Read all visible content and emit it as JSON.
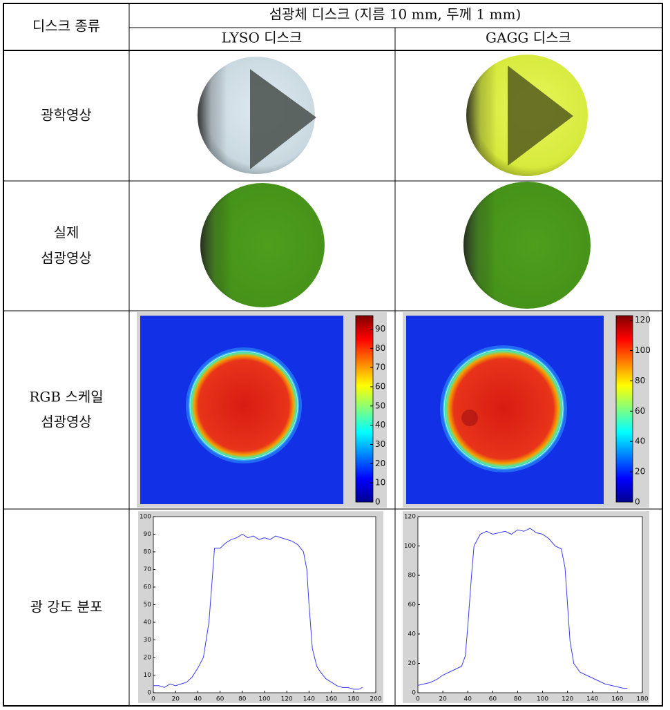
{
  "table": {
    "header": {
      "row_label": "디스크 종류",
      "group": "섬광체 디스크 (지름 10 mm, 두께 1 mm)",
      "columns": [
        "LYSO 디스크",
        "GAGG 디스크"
      ]
    },
    "rows": [
      {
        "label": [
          "광학영상"
        ]
      },
      {
        "label": [
          "실제",
          "섬광영상"
        ]
      },
      {
        "label": [
          "RGB 스케일",
          "섬광영상"
        ]
      },
      {
        "label": [
          "광 강도 분포"
        ]
      }
    ]
  },
  "colorbars": [
    {
      "clim": [
        0,
        97
      ],
      "ticks": [
        0,
        10,
        20,
        30,
        40,
        50,
        60,
        70,
        80,
        90
      ]
    },
    {
      "clim": [
        0,
        123
      ],
      "ticks": [
        0,
        20,
        40,
        60,
        80,
        100,
        120
      ]
    }
  ],
  "profiles": [
    {
      "type": "line",
      "xlim": [
        0,
        200
      ],
      "ylim": [
        0,
        100
      ],
      "xticks": [
        0,
        20,
        40,
        60,
        80,
        100,
        120,
        140,
        160,
        180,
        200
      ],
      "yticks": [
        0,
        10,
        20,
        30,
        40,
        50,
        60,
        70,
        80,
        90,
        100
      ],
      "color": "#3a3af0",
      "x": [
        0,
        5,
        10,
        15,
        20,
        25,
        30,
        35,
        40,
        45,
        50,
        53,
        55,
        60,
        65,
        70,
        75,
        80,
        85,
        90,
        95,
        100,
        105,
        110,
        115,
        120,
        125,
        130,
        135,
        138,
        140,
        143,
        147,
        150,
        155,
        160,
        165,
        170,
        175,
        180,
        185,
        188
      ],
      "values": [
        4,
        4,
        3,
        5,
        4,
        5,
        6,
        9,
        14,
        20,
        40,
        65,
        82,
        82,
        85,
        87,
        88,
        90,
        88,
        89,
        87,
        88,
        87,
        89,
        88,
        87,
        86,
        84,
        80,
        70,
        50,
        25,
        15,
        12,
        8,
        6,
        4,
        3,
        3,
        2,
        2,
        3
      ]
    },
    {
      "type": "line",
      "xlim": [
        0,
        180
      ],
      "ylim": [
        0,
        120
      ],
      "xticks": [
        0,
        20,
        40,
        60,
        80,
        100,
        120,
        140,
        160,
        180
      ],
      "yticks": [
        0,
        20,
        40,
        60,
        80,
        100,
        120
      ],
      "color": "#3a3af0",
      "x": [
        0,
        5,
        10,
        15,
        20,
        25,
        30,
        35,
        38,
        40,
        43,
        45,
        50,
        55,
        60,
        65,
        70,
        75,
        80,
        85,
        90,
        95,
        100,
        105,
        110,
        115,
        118,
        120,
        122,
        125,
        130,
        135,
        140,
        145,
        150,
        155,
        160,
        165,
        168
      ],
      "values": [
        5,
        6,
        7,
        9,
        12,
        14,
        16,
        18,
        25,
        45,
        80,
        100,
        108,
        110,
        108,
        109,
        110,
        108,
        111,
        110,
        112,
        109,
        108,
        105,
        100,
        98,
        85,
        60,
        35,
        20,
        14,
        12,
        10,
        8,
        6,
        5,
        4,
        3,
        3
      ]
    }
  ]
}
